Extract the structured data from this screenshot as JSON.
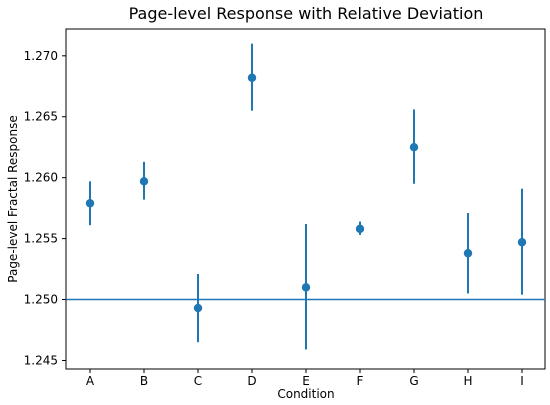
{
  "chart_data": {
    "type": "scatter",
    "title": "Page-level Response with Relative Deviation",
    "xlabel": "Condition",
    "ylabel": "Page-level Fractal Response",
    "categories": [
      "A",
      "B",
      "C",
      "D",
      "E",
      "F",
      "G",
      "H",
      "I"
    ],
    "values": [
      1.2579,
      1.2597,
      1.2493,
      1.2682,
      1.251,
      1.2558,
      1.2625,
      1.2538,
      1.2547
    ],
    "error_low": [
      1.2561,
      1.2582,
      1.2465,
      1.2655,
      1.2459,
      1.2553,
      1.2595,
      1.2505,
      1.2504
    ],
    "error_high": [
      1.2597,
      1.2613,
      1.2521,
      1.271,
      1.2562,
      1.2564,
      1.2656,
      1.2571,
      1.2591
    ],
    "reference_line": 1.25,
    "ylim": [
      1.2443,
      1.2722
    ],
    "yticks": [
      "1.245",
      "1.250",
      "1.255",
      "1.260",
      "1.265",
      "1.270"
    ],
    "grid": false,
    "legend": "none",
    "series_color": "#1f77b4"
  }
}
